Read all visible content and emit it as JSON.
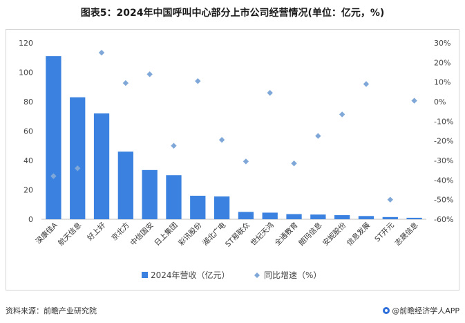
{
  "title": "图表5：2024年中国呼叫中心部分上市公司经营情况(单位：亿元，%)",
  "source": "资料来源：前瞻产业研究院",
  "brand": "@前瞻经济学人APP",
  "chart_data": {
    "type": "bar",
    "categories": [
      "深康佳A",
      "航天信息",
      "好上好",
      "京北方",
      "中信国安",
      "日上集团",
      "彩讯股份",
      "湖北广电",
      "ST易联众",
      "世纪天鸿",
      "全通教育",
      "朗玛信息",
      "安妮股份",
      "信息发展",
      "ST开元",
      "志晟信息"
    ],
    "series": [
      {
        "name": "2024年营收（亿元）",
        "type": "bar",
        "axis": "left",
        "color": "#3b82e0",
        "values": [
          111,
          83,
          72,
          46,
          33.5,
          30,
          16,
          15.5,
          5,
          4.5,
          3.5,
          3.2,
          2.8,
          2.2,
          1.5,
          1.0
        ]
      },
      {
        "name": "同比增速（%）",
        "type": "scatter",
        "axis": "right",
        "color": "#7fa8d9",
        "values": [
          -38,
          -34,
          25,
          9.5,
          14,
          -22.5,
          10.5,
          -19.5,
          -30.5,
          4.5,
          -31.5,
          -17.5,
          -6.5,
          9,
          -50,
          0.5
        ]
      }
    ],
    "y_left": {
      "min": 0,
      "max": 120,
      "ticks": [
        0,
        20,
        40,
        60,
        80,
        100,
        120
      ]
    },
    "y_right": {
      "min": -60,
      "max": 30,
      "ticks": [
        30,
        20,
        10,
        0,
        -10,
        -20,
        -30,
        -40,
        -50,
        -60
      ],
      "tick_labels": [
        "30%",
        "20%",
        "10%",
        "0%",
        "-10%",
        "-20%",
        "-30%",
        "-40%",
        "-50%",
        "-60%"
      ]
    },
    "legend_position": "bottom",
    "grid": false
  }
}
